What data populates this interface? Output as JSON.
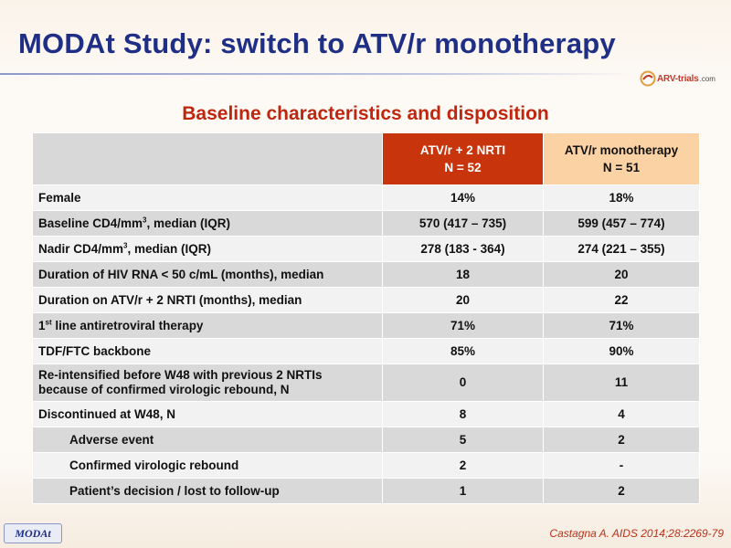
{
  "slide": {
    "title": "MODAt Study: switch to ATV/r monotherapy",
    "logo_text": "ARV-trials",
    "logo_suffix": ".com",
    "subtitle": "Baseline characteristics and disposition",
    "badge": "MODAt",
    "citation": "Castagna A. AIDS 2014;28:2269-79"
  },
  "table": {
    "header": {
      "col1_line1": "ATV/r + 2 NRTI",
      "col1_line2": "N = 52",
      "col2_line1": "ATV/r monotherapy",
      "col2_line2": "N = 51"
    },
    "rows": [
      {
        "label": "Female",
        "v1": "14%",
        "v2": "18%"
      },
      {
        "label_pre": "Baseline CD4/mm",
        "label_sup": "3",
        "label_post": ", median (IQR)",
        "v1": "570 (417 – 735)",
        "v2": "599 (457 – 774)"
      },
      {
        "label_pre": "Nadir CD4/mm",
        "label_sup": "3",
        "label_post": ", median (IQR)",
        "v1": "278 (183 - 364)",
        "v2": "274 (221 – 355)"
      },
      {
        "label": "Duration of HIV RNA < 50 c/mL (months), median",
        "v1": "18",
        "v2": "20"
      },
      {
        "label": "Duration on ATV/r + 2 NRTI (months), median",
        "v1": "20",
        "v2": "22"
      },
      {
        "label_pre": "1",
        "label_sup": "st",
        "label_post": " line antiretroviral therapy",
        "v1": "71%",
        "v2": "71%"
      },
      {
        "label": "TDF/FTC backbone",
        "v1": "85%",
        "v2": "90%"
      },
      {
        "label_line1": "Re-intensified before W48 with previous 2 NRTIs",
        "label_line2": "because of confirmed virologic rebound, N",
        "v1": "0",
        "v2": "11"
      },
      {
        "label": "Discontinued at W48, N",
        "v1": "8",
        "v2": "4"
      },
      {
        "label": "Adverse event",
        "v1": "5",
        "v2": "2"
      },
      {
        "label": "Confirmed virologic rebound",
        "v1": "2",
        "v2": "-"
      },
      {
        "label": "Patient’s decision / lost to follow-up",
        "v1": "1",
        "v2": "2"
      }
    ]
  },
  "colors": {
    "title": "#1f2f86",
    "subtitle": "#c0260e",
    "header_col1": "#c8350d",
    "header_col2": "#fbd2a4",
    "row_light": "#f2f2f2",
    "row_dark": "#d9d9d9",
    "citation": "#b8321b"
  },
  "icons": {
    "logo": "arv-trials-logo-icon"
  }
}
